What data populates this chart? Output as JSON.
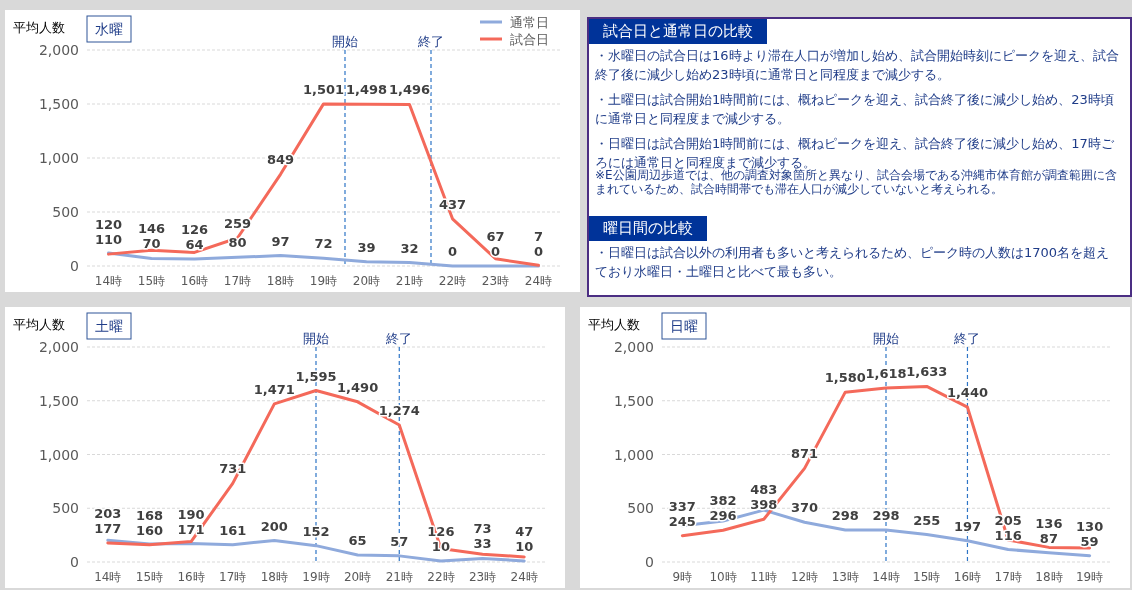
{
  "chart_data": [
    {
      "type": "line",
      "title": "水曜",
      "ylabel": "平均人数",
      "x": [
        14,
        15,
        16,
        17,
        18,
        19,
        20,
        21,
        22,
        23,
        24
      ],
      "xlim": [
        13.5,
        24.5
      ],
      "xticks": [
        {
          "value": 14,
          "label": "14時"
        },
        {
          "value": 15,
          "label": "15時"
        },
        {
          "value": 16,
          "label": "16時"
        },
        {
          "value": 17,
          "label": "17時"
        },
        {
          "value": 18,
          "label": "18時"
        },
        {
          "value": 19,
          "label": "19時"
        },
        {
          "value": 20,
          "label": "20時"
        },
        {
          "value": 21,
          "label": "21時"
        },
        {
          "value": 22,
          "label": "22時"
        },
        {
          "value": 23,
          "label": "23時"
        },
        {
          "value": 24,
          "label": "24時"
        }
      ],
      "ylim": [
        0,
        2000
      ],
      "yticks": [
        {
          "value": 0,
          "label": "0"
        },
        {
          "value": 500,
          "label": "500"
        },
        {
          "value": 1000,
          "label": "1,000"
        },
        {
          "value": 1500,
          "label": "1,500"
        },
        {
          "value": 2000,
          "label": "2,000"
        }
      ],
      "series": [
        {
          "name": "通常日",
          "color": "#8faadc",
          "values": [
            120,
            70,
            64,
            80,
            97,
            72,
            39,
            32,
            0,
            0,
            0
          ],
          "value_labels": [
            "120",
            "70",
            "64",
            "80",
            "97",
            "72",
            "39",
            "32",
            "0",
            "0",
            "0"
          ]
        },
        {
          "name": "試合日",
          "color": "#f4695a",
          "values": [
            110,
            146,
            126,
            259,
            849,
            1501,
            1498,
            1496,
            437,
            67,
            7
          ],
          "value_labels": [
            "110",
            "146",
            "126",
            "259",
            "849",
            "1,501",
            "1,498",
            "1,496",
            "437",
            "67",
            "7"
          ]
        }
      ],
      "ref_lines": [
        {
          "axis": "x",
          "value": 19.5,
          "label": "開始",
          "color": "#2e75c6",
          "line_style": "dashed"
        },
        {
          "axis": "x",
          "value": 21.5,
          "label": "終了",
          "color": "#2e75c6",
          "line_style": "dashed"
        }
      ],
      "grid": "y",
      "legend": "top right"
    },
    {
      "type": "other",
      "title": "試合日と通常日の比較",
      "annotations": [
        "・水曜日の試合日は16時より滞在人口が増加し始め、試合開始時刻にピークを迎え、試合終了後に減少し始め23時頃に通常日と同程度まで減少する。",
        "・土曜日は試合開始1時間前には、概ねピークを迎え、試合終了後に減少し始め、23時頃に通常日と同程度まで減少する。",
        "・日曜日は試合開始1時間前には、概ねピークを迎え、試合終了後に減少し始め、17時ごろには通常日と同程度まで減少する。"
      ]
    },
    {
      "type": "other",
      "annotations": [
        "※E公園周辺歩道では、他の調査対象箇所と異なり、試合会場である沖縄市体育館が調査範囲に含まれているため、試合時間帯でも滞在人口が減少していないと考えられる。"
      ]
    },
    {
      "type": "other",
      "title": "曜日間の比較",
      "annotations": [
        "・日曜日は試合以外の利用者も多いと考えられるため、ピーク時の人数は1700名を超えており水曜日・土曜日と比べて最も多い。"
      ]
    },
    {
      "type": "line",
      "title": "土曜",
      "ylabel": "平均人数",
      "x": [
        14,
        15,
        16,
        17,
        18,
        19,
        20,
        21,
        22,
        23,
        24
      ],
      "xlim": [
        13.5,
        24.5
      ],
      "xticks": [
        {
          "value": 14,
          "label": "14時"
        },
        {
          "value": 15,
          "label": "15時"
        },
        {
          "value": 16,
          "label": "16時"
        },
        {
          "value": 17,
          "label": "17時"
        },
        {
          "value": 18,
          "label": "18時"
        },
        {
          "value": 19,
          "label": "19時"
        },
        {
          "value": 20,
          "label": "20時"
        },
        {
          "value": 21,
          "label": "21時"
        },
        {
          "value": 22,
          "label": "22時"
        },
        {
          "value": 23,
          "label": "23時"
        },
        {
          "value": 24,
          "label": "24時"
        }
      ],
      "ylim": [
        0,
        2000
      ],
      "yticks": [
        {
          "value": 0,
          "label": "0"
        },
        {
          "value": 500,
          "label": "500"
        },
        {
          "value": 1000,
          "label": "1,000"
        },
        {
          "value": 1500,
          "label": "1,500"
        },
        {
          "value": 2000,
          "label": "2,000"
        }
      ],
      "series": [
        {
          "color": "#8faadc",
          "values": [
            203,
            168,
            171,
            161,
            200,
            152,
            65,
            57,
            10,
            33,
            10
          ],
          "value_labels": [
            "203",
            "168",
            "171",
            "161",
            "200",
            "152",
            "65",
            "57",
            "10",
            "33",
            "10"
          ]
        },
        {
          "color": "#f4695a",
          "values": [
            177,
            160,
            190,
            731,
            1471,
            1595,
            1490,
            1274,
            126,
            73,
            47
          ],
          "value_labels": [
            "177",
            "160",
            "190",
            "731",
            "1,471",
            "1,595",
            "1,490",
            "1,274",
            "126",
            "73",
            "47"
          ]
        }
      ],
      "ref_lines": [
        {
          "axis": "x",
          "value": 19,
          "label": "開始",
          "color": "#2e75c6",
          "line_style": "dashed"
        },
        {
          "axis": "x",
          "value": 21,
          "label": "終了",
          "color": "#2e75c6",
          "line_style": "dashed"
        }
      ],
      "grid": "y"
    },
    {
      "type": "line",
      "title": "日曜",
      "ylabel": "平均人数",
      "x": [
        9,
        10,
        11,
        12,
        13,
        14,
        15,
        16,
        17,
        18,
        19
      ],
      "xlim": [
        8.5,
        19.5
      ],
      "xticks": [
        {
          "value": 9,
          "label": "9時"
        },
        {
          "value": 10,
          "label": "10時"
        },
        {
          "value": 11,
          "label": "11時"
        },
        {
          "value": 12,
          "label": "12時"
        },
        {
          "value": 13,
          "label": "13時"
        },
        {
          "value": 14,
          "label": "14時"
        },
        {
          "value": 15,
          "label": "15時"
        },
        {
          "value": 16,
          "label": "16時"
        },
        {
          "value": 17,
          "label": "17時"
        },
        {
          "value": 18,
          "label": "18時"
        },
        {
          "value": 19,
          "label": "19時"
        }
      ],
      "ylim": [
        0,
        2000
      ],
      "yticks": [
        {
          "value": 0,
          "label": "0"
        },
        {
          "value": 500,
          "label": "500"
        },
        {
          "value": 1000,
          "label": "1,000"
        },
        {
          "value": 1500,
          "label": "1,500"
        },
        {
          "value": 2000,
          "label": "2,000"
        }
      ],
      "series": [
        {
          "color": "#8faadc",
          "values": [
            337,
            382,
            483,
            370,
            298,
            298,
            255,
            197,
            116,
            87,
            59
          ],
          "value_labels": [
            "337",
            "382",
            "483",
            "370",
            "298",
            "298",
            "255",
            "197",
            "116",
            "87",
            "59"
          ]
        },
        {
          "color": "#f4695a",
          "values": [
            245,
            296,
            398,
            871,
            1580,
            1618,
            1633,
            1440,
            205,
            136,
            130
          ],
          "value_labels": [
            "245",
            "296",
            "398",
            "871",
            "1,580",
            "1,618",
            "1,633",
            "1,440",
            "205",
            "136",
            "130"
          ]
        }
      ],
      "ref_lines": [
        {
          "axis": "x",
          "value": 14,
          "label": "開始",
          "color": "#2e75c6",
          "line_style": "dashed"
        },
        {
          "axis": "x",
          "value": 16,
          "label": "終了",
          "color": "#2e75c6",
          "line_style": "dashed"
        }
      ],
      "grid": "y"
    }
  ]
}
